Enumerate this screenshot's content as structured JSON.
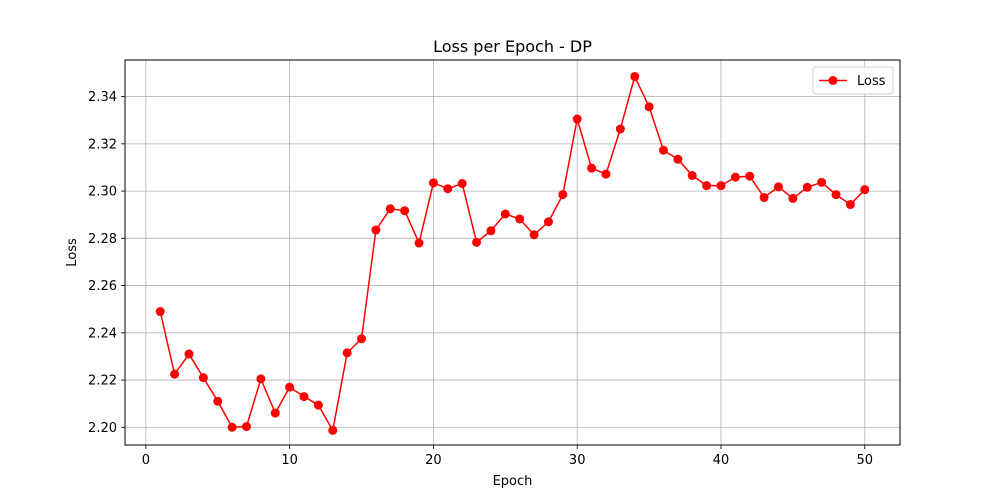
{
  "chart_data": {
    "type": "line",
    "title": "Loss per Epoch - DP",
    "xlabel": "Epoch",
    "ylabel": "Loss",
    "xlim": [
      -1.45,
      52.45
    ],
    "ylim": [
      2.1925,
      2.3555
    ],
    "xticks": [
      0,
      10,
      20,
      30,
      40,
      50
    ],
    "yticks": [
      2.2,
      2.22,
      2.24,
      2.26,
      2.28,
      2.3,
      2.32,
      2.34
    ],
    "ytick_labels": [
      "2.20",
      "2.22",
      "2.24",
      "2.26",
      "2.28",
      "2.30",
      "2.32",
      "2.34"
    ],
    "grid": true,
    "legend_position": "top-right",
    "series": [
      {
        "name": "Loss",
        "color": "#ff0000",
        "marker": "circle",
        "x": [
          1,
          2,
          3,
          4,
          5,
          6,
          7,
          8,
          9,
          10,
          11,
          12,
          13,
          14,
          15,
          16,
          17,
          18,
          19,
          20,
          21,
          22,
          23,
          24,
          25,
          26,
          27,
          28,
          29,
          30,
          31,
          32,
          33,
          34,
          35,
          36,
          37,
          38,
          39,
          40,
          41,
          42,
          43,
          44,
          45,
          46,
          47,
          48,
          49,
          50
        ],
        "values": [
          2.249,
          2.2225,
          2.231,
          2.221,
          2.211,
          2.2,
          2.2003,
          2.2205,
          2.206,
          2.217,
          2.213,
          2.2094,
          2.1987,
          2.2315,
          2.2375,
          2.2835,
          2.2925,
          2.2917,
          2.278,
          2.3035,
          2.301,
          2.3032,
          2.2783,
          2.2832,
          2.2903,
          2.2882,
          2.2815,
          2.287,
          2.2985,
          2.3305,
          2.3097,
          2.3072,
          2.3263,
          2.3485,
          2.3357,
          2.3173,
          2.3135,
          2.3066,
          2.3023,
          2.3023,
          2.3059,
          2.3063,
          2.2973,
          2.3018,
          2.2969,
          2.3016,
          2.3037,
          2.2985,
          2.2943,
          2.3006
        ]
      }
    ]
  }
}
